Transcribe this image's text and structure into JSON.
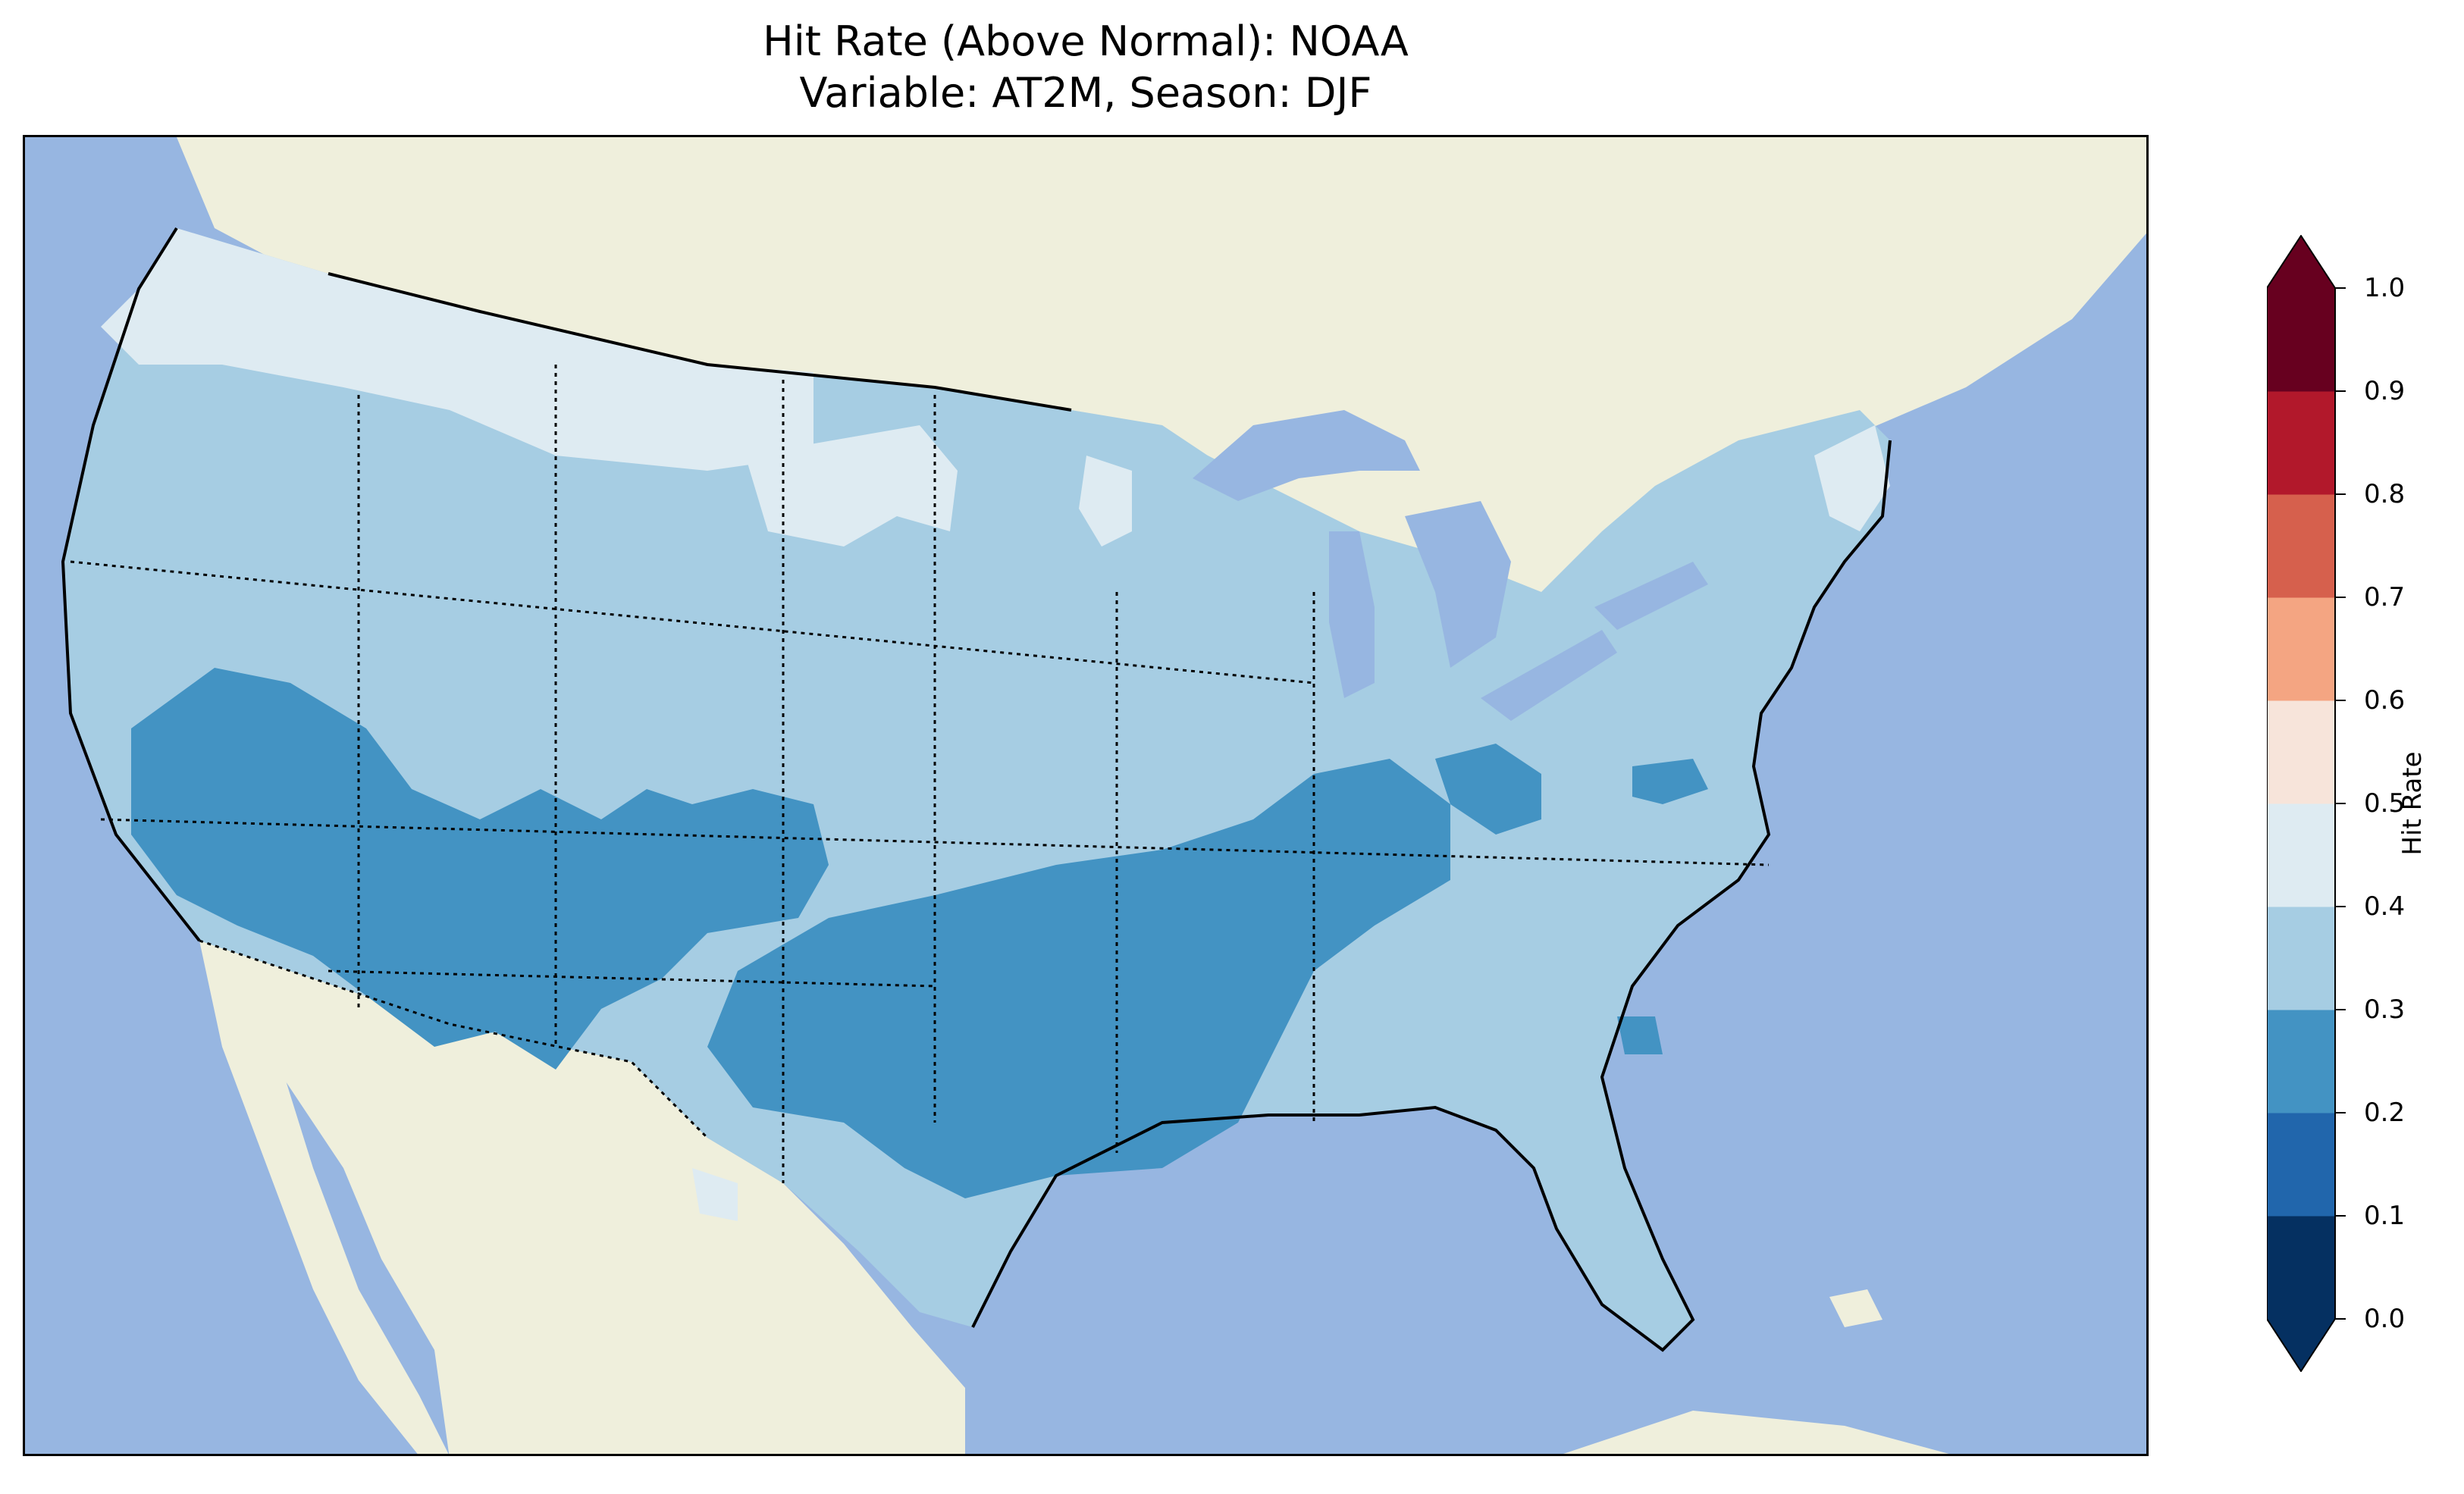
{
  "title": {
    "line1": "Hit Rate (Above Normal): NOAA",
    "line2": "Variable: AT2M, Season: DJF"
  },
  "map": {
    "region": "contiguous-united-states",
    "ocean_color": "#97b6e1",
    "land_color": "#efefdc",
    "lake_color": "#97b6e1"
  },
  "colorbar": {
    "label": "Hit Rate",
    "ticks": [
      "0.0",
      "0.1",
      "0.2",
      "0.3",
      "0.4",
      "0.5",
      "0.6",
      "0.7",
      "0.8",
      "0.9",
      "1.0"
    ],
    "bins": [
      {
        "range": "0.0-0.1",
        "color": "#053061"
      },
      {
        "range": "0.1-0.2",
        "color": "#2166ac"
      },
      {
        "range": "0.2-0.3",
        "color": "#4393c3"
      },
      {
        "range": "0.3-0.4",
        "color": "#a6cde3"
      },
      {
        "range": "0.4-0.5",
        "color": "#deebf2"
      },
      {
        "range": "0.5-0.6",
        "color": "#f7e4da"
      },
      {
        "range": "0.6-0.7",
        "color": "#f4a582"
      },
      {
        "range": "0.7-0.8",
        "color": "#d6604d"
      },
      {
        "range": "0.8-0.9",
        "color": "#b2182b"
      },
      {
        "range": "0.9-1.0",
        "color": "#67001f"
      }
    ],
    "under_color": "#053061",
    "over_color": "#67001f"
  }
}
